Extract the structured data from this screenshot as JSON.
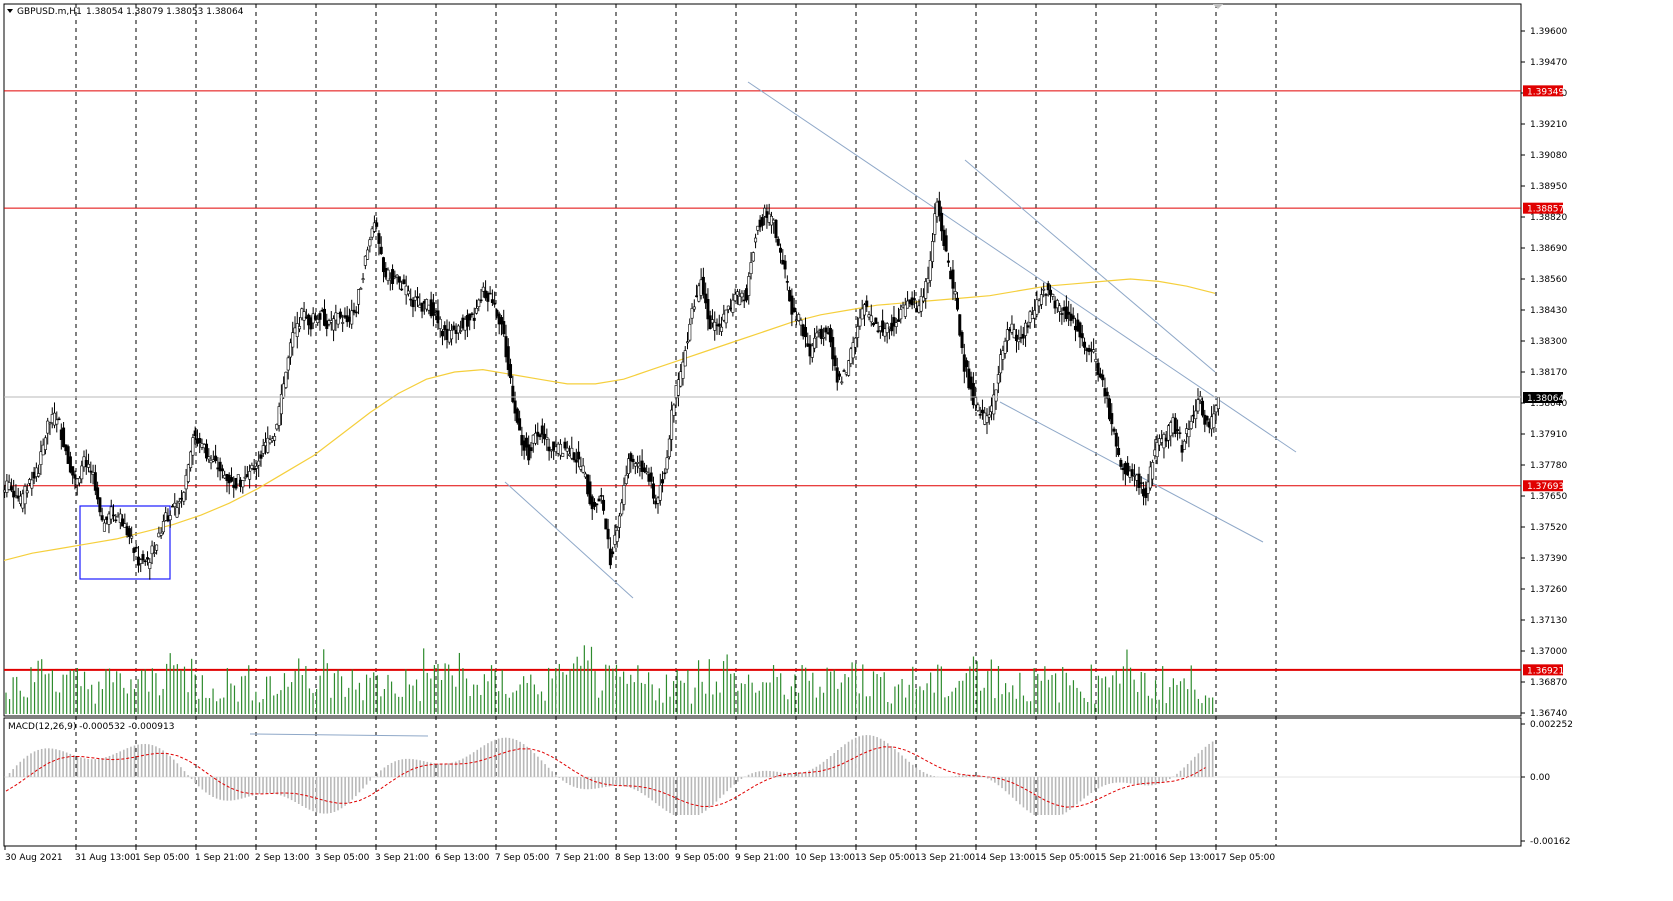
{
  "header": {
    "symbol": "GBPUSD.m,H1",
    "ohlc": "1.38054 1.38079 1.38053 1.38064"
  },
  "macd": {
    "label": "MACD(12,26,9) -0.000532 -0.000913",
    "ticks": [
      "0.002252",
      "0.00",
      "-0.00162"
    ]
  },
  "chart_data": {
    "type": "candlestick",
    "price_ticks": [
      "1.39600",
      "1.39470",
      "1.39340",
      "1.39210",
      "1.39080",
      "1.38950",
      "1.38820",
      "1.38690",
      "1.38560",
      "1.38430",
      "1.38300",
      "1.38170",
      "1.38040",
      "1.37910",
      "1.37780",
      "1.37650",
      "1.37520",
      "1.37390",
      "1.37260",
      "1.37130",
      "1.37000",
      "1.36870",
      "1.36740"
    ],
    "current_price": "1.38064",
    "horizontal_levels": [
      "1.39349",
      "1.38857",
      "1.37693",
      "1.36921"
    ],
    "x_ticks": [
      "30 Aug 2021",
      "31 Aug 13:00",
      "1 Sep 05:00",
      "1 Sep 21:00",
      "2 Sep 13:00",
      "3 Sep 05:00",
      "3 Sep 21:00",
      "6 Sep 13:00",
      "7 Sep 05:00",
      "7 Sep 21:00",
      "8 Sep 13:00",
      "9 Sep 05:00",
      "9 Sep 21:00",
      "10 Sep 13:00",
      "13 Sep 05:00",
      "13 Sep 21:00",
      "14 Sep 13:00",
      "15 Sep 05:00",
      "15 Sep 21:00",
      "16 Sep 13:00",
      "17 Sep 05:00"
    ],
    "price_series": [
      1.3769,
      1.3762,
      1.3771,
      1.3776,
      1.3795,
      1.3799,
      1.3784,
      1.3771,
      1.3779,
      1.3772,
      1.3752,
      1.3758,
      1.3756,
      1.3748,
      1.3738,
      1.3737,
      1.3746,
      1.3757,
      1.3759,
      1.3768,
      1.379,
      1.3787,
      1.378,
      1.3776,
      1.3772,
      1.3771,
      1.3772,
      1.3779,
      1.3786,
      1.3792,
      1.3812,
      1.3832,
      1.3841,
      1.3838,
      1.3842,
      1.3836,
      1.384,
      1.3838,
      1.3844,
      1.3864,
      1.3881,
      1.3858,
      1.3857,
      1.3853,
      1.3848,
      1.3845,
      1.3845,
      1.3838,
      1.3832,
      1.3836,
      1.3838,
      1.384,
      1.3851,
      1.3848,
      1.3837,
      1.3813,
      1.379,
      1.3783,
      1.3793,
      1.3787,
      1.3784,
      1.3785,
      1.3782,
      1.3776,
      1.3761,
      1.3764,
      1.3739,
      1.3758,
      1.3781,
      1.3779,
      1.3775,
      1.3762,
      1.3776,
      1.3806,
      1.382,
      1.3845,
      1.3854,
      1.3837,
      1.3836,
      1.3843,
      1.3848,
      1.385,
      1.3876,
      1.3883,
      1.3879,
      1.3862,
      1.3843,
      1.3837,
      1.3825,
      1.3833,
      1.3836,
      1.3814,
      1.3817,
      1.3831,
      1.3845,
      1.3837,
      1.3835,
      1.3837,
      1.3842,
      1.3847,
      1.3843,
      1.3858,
      1.3888,
      1.3866,
      1.3848,
      1.382,
      1.3806,
      1.3797,
      1.3801,
      1.3824,
      1.3836,
      1.3829,
      1.3837,
      1.3846,
      1.3852,
      1.3845,
      1.3843,
      1.3839,
      1.3831,
      1.3826,
      1.3816,
      1.38,
      1.3781,
      1.3775,
      1.3772,
      1.3766,
      1.3784,
      1.3789,
      1.3795,
      1.3786,
      1.3799,
      1.3804,
      1.3792,
      1.3806
    ],
    "ma_series": [
      1.3738,
      1.3741,
      1.3743,
      1.3745,
      1.3747,
      1.375,
      1.3753,
      1.3757,
      1.3762,
      1.3768,
      1.3775,
      1.3782,
      1.3791,
      1.38,
      1.3808,
      1.3814,
      1.3817,
      1.3818,
      1.3816,
      1.3814,
      1.3812,
      1.3812,
      1.3814,
      1.3818,
      1.3822,
      1.3826,
      1.383,
      1.3834,
      1.3838,
      1.3841,
      1.3843,
      1.3845,
      1.3846,
      1.3847,
      1.3848,
      1.3849,
      1.3851,
      1.3853,
      1.3854,
      1.3855,
      1.3856,
      1.3855,
      1.3853,
      1.385
    ]
  }
}
